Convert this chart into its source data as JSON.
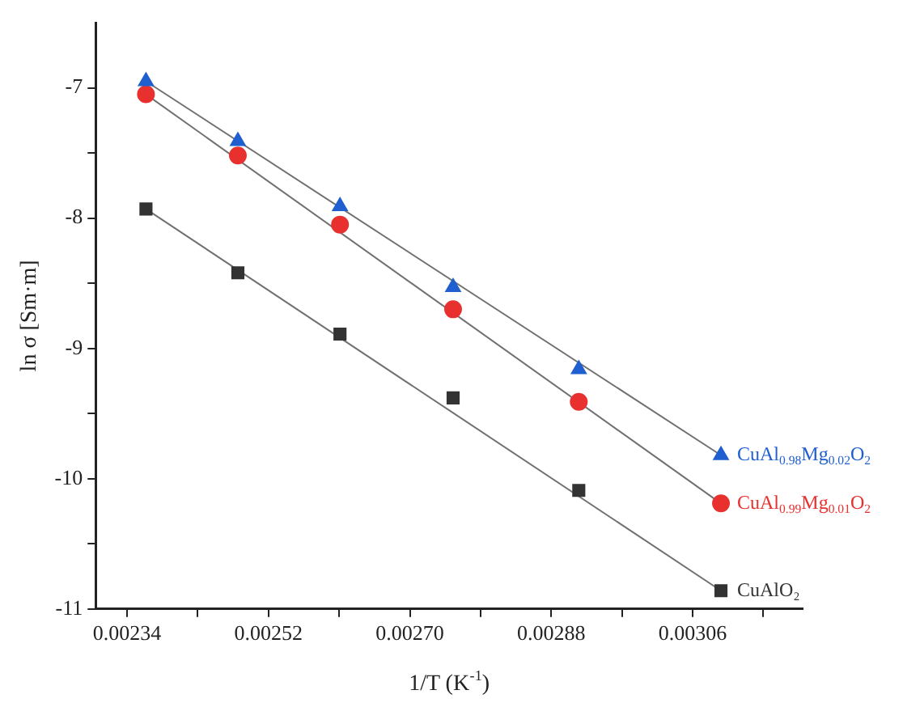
{
  "chart_data": {
    "type": "scatter",
    "xlabel": "1/T (K$^{-1}$)",
    "ylabel": "ln σ [Sm·m]",
    "xlim": [
      0.0023,
      0.0032
    ],
    "xticks": [
      0.00234,
      {
        "value": 0.00243,
        "label": null
      },
      0.00252,
      {
        "value": 0.00261,
        "label": null
      },
      {
        "value": 0.0027,
        "label": "0.00270"
      },
      {
        "value": 0.00279,
        "label": null
      },
      0.00288,
      {
        "value": 0.00297,
        "label": null
      },
      0.00306,
      {
        "value": 0.00315,
        "label": null
      }
    ],
    "ylim": [
      -11,
      -6.5
    ],
    "yticks": [
      -11,
      {
        "value": -10.5,
        "label": null
      },
      -10,
      {
        "value": -9.5,
        "label": null
      },
      -9,
      {
        "value": -8.5,
        "label": null
      },
      -8,
      {
        "value": -7.5,
        "label": null
      },
      -7
    ],
    "grid": false,
    "legend": false,
    "series": [
      {
        "name": "CuAl$_{0.98}$Mg$_{0.02}$O$_{2}$",
        "color": "#1f5fd0",
        "marker": "triangle",
        "x": [
          0.002364,
          0.002481,
          0.002611,
          0.002755,
          0.002915,
          0.003096
        ],
        "values": [
          -6.95,
          -7.41,
          -7.91,
          -8.53,
          -9.16,
          -9.82
        ]
      },
      {
        "name": "CuAl$_{0.99}$Mg$_{0.01}$O$_{2}$",
        "color": "#e8312f",
        "marker": "circle",
        "x": [
          0.002364,
          0.002481,
          0.002611,
          0.002755,
          0.002915,
          0.003096
        ],
        "values": [
          -7.05,
          -7.52,
          -8.05,
          -8.7,
          -9.41,
          -10.19
        ]
      },
      {
        "name": "CuAlO₂",
        "color": "#333333",
        "marker": "square",
        "x": [
          0.002364,
          0.002481,
          0.002611,
          0.002755,
          0.002915,
          0.003096
        ],
        "values": [
          -7.93,
          -8.42,
          -8.89,
          -9.38,
          -10.09,
          -10.86
        ]
      },
      {
        "type": "line",
        "color": "#707070",
        "marker": "none",
        "x": [
          0.002364,
          0.003096
        ],
        "values": [
          -6.95,
          -9.82
        ]
      },
      {
        "type": "line",
        "color": "#707070",
        "marker": "none",
        "x": [
          0.002364,
          0.003096
        ],
        "values": [
          -7.05,
          -10.19
        ]
      },
      {
        "type": "line",
        "color": "#707070",
        "marker": "none",
        "x": [
          0.002364,
          0.003096
        ],
        "values": [
          -7.93,
          -10.86
        ]
      }
    ]
  }
}
